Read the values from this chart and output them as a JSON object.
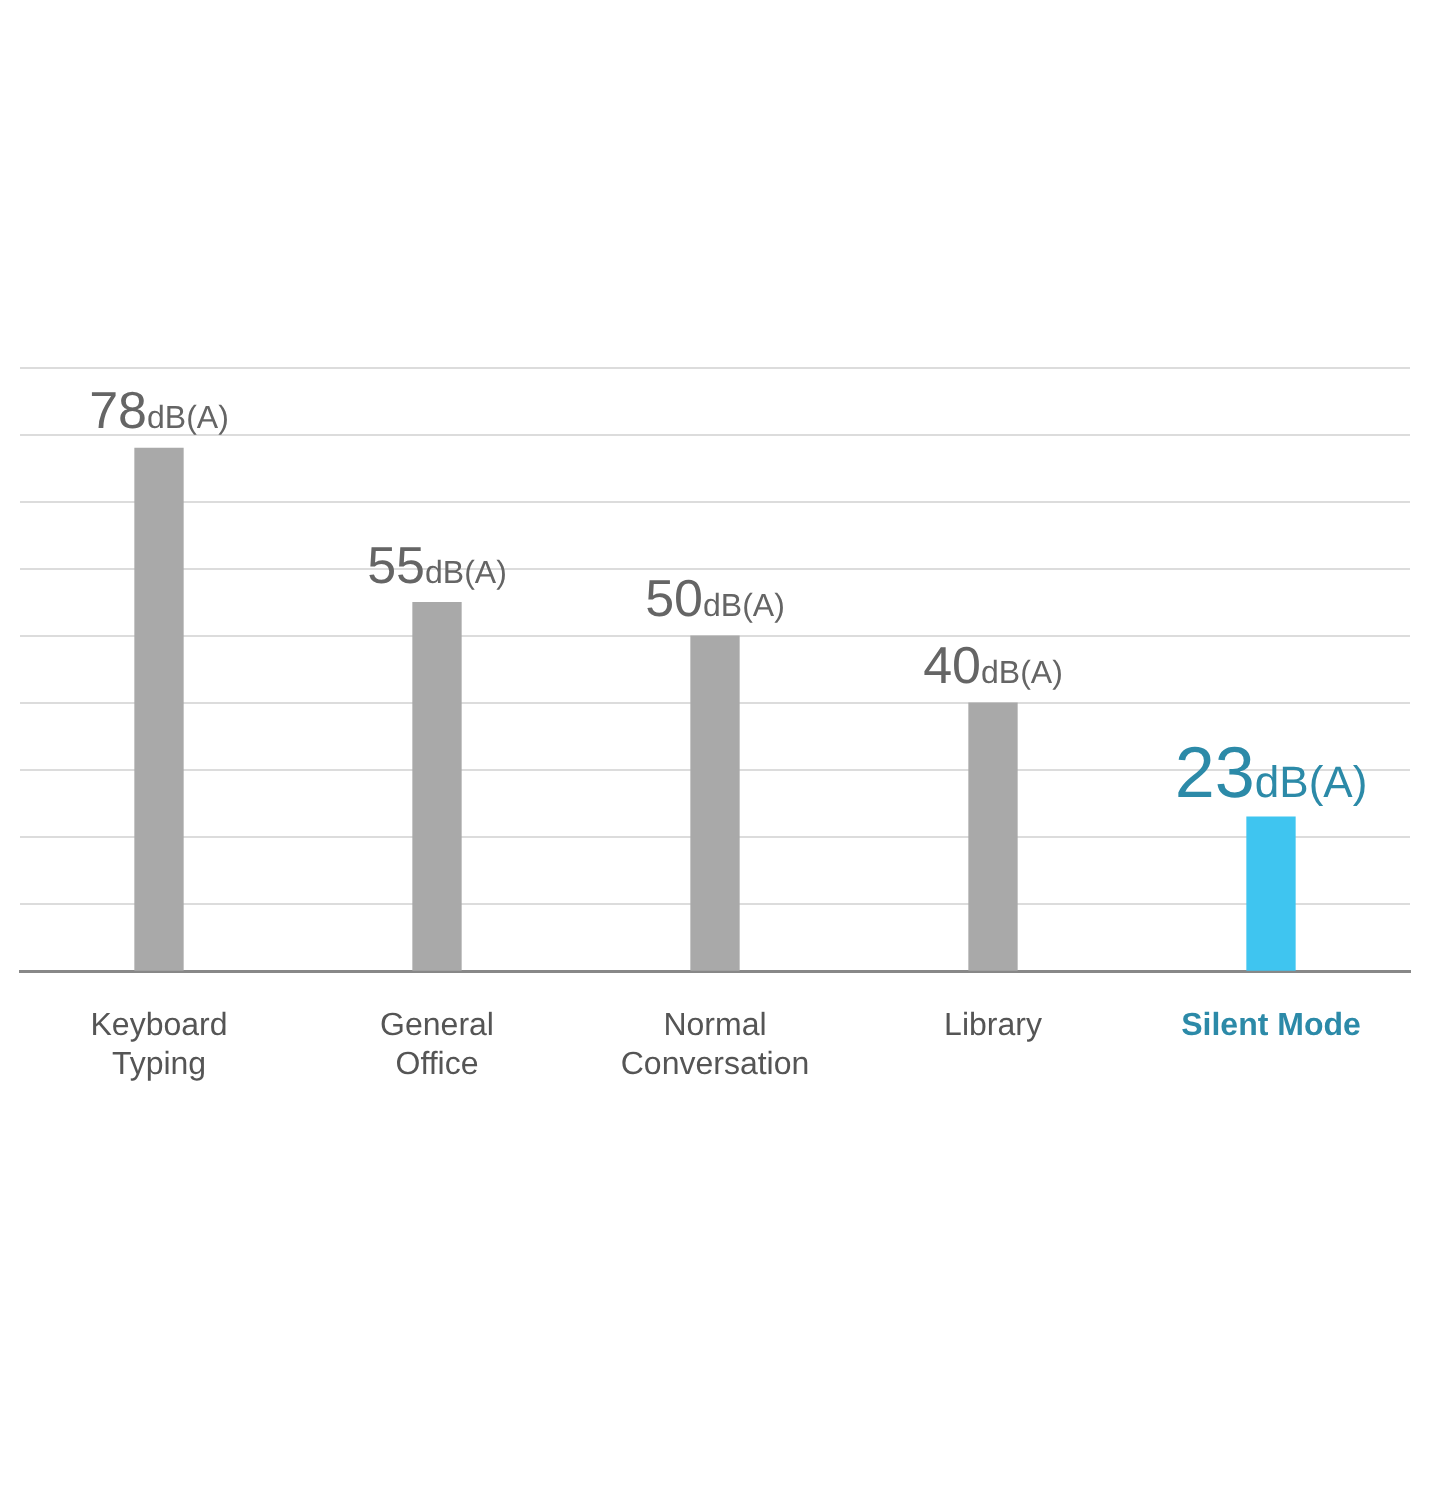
{
  "chart_data": {
    "type": "bar",
    "categories": [
      "Keyboard Typing",
      "General Office",
      "Normal Conversation",
      "Library",
      "Silent Mode"
    ],
    "values": [
      78,
      55,
      50,
      40,
      23
    ],
    "colors": [
      "#a9a9a9",
      "#a9a9a9",
      "#a9a9a9",
      "#a9a9a9",
      "#3fc5f0"
    ],
    "value_labels": [
      "78dB(A)",
      "55dB(A)",
      "50dB(A)",
      "40dB(A)",
      "23dB(A)"
    ],
    "ylim": [
      0,
      90
    ],
    "yticks": [
      {
        "value": 0,
        "label": null
      },
      {
        "value": 10,
        "label": null
      },
      {
        "value": 20,
        "label": null
      },
      {
        "value": 30,
        "label": null
      },
      {
        "value": 40,
        "label": null
      },
      {
        "value": 50,
        "label": null
      },
      {
        "value": 60,
        "label": null
      },
      {
        "value": 70,
        "label": null
      },
      {
        "value": 80,
        "label": null
      },
      {
        "value": 90,
        "label": null
      }
    ],
    "grid": "y",
    "legend": false
  }
}
